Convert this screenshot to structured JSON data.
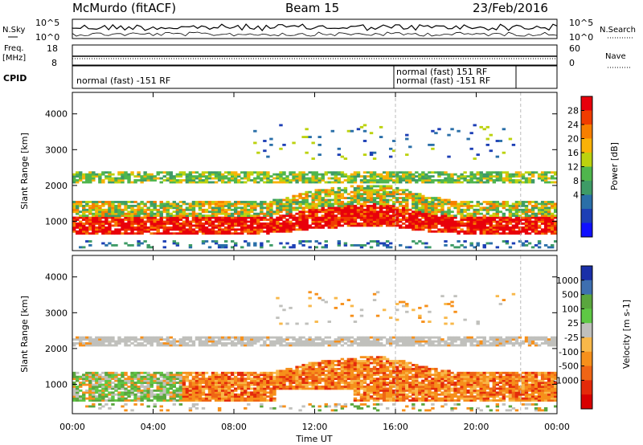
{
  "header": {
    "station": "McMurdo (fitACF)",
    "beam": "Beam 15",
    "date": "23/Feb/2016"
  },
  "noise_panel": {
    "left_label": "N.Sky",
    "right_label": "N.Search",
    "left_ticks": [
      "10^5",
      "10^0"
    ],
    "right_ticks": [
      "10^5",
      "10^0"
    ]
  },
  "freq_panel": {
    "left_label_1": "Freq.",
    "left_label_2": "[MHz]",
    "right_label": "Nave",
    "left_ticks": [
      "18",
      "8"
    ],
    "right_ticks": [
      "60",
      "0"
    ]
  },
  "cpid_panel": {
    "label": "CPID",
    "segments": [
      {
        "text": "normal (fast) -151 RF",
        "start_hour": 0
      },
      {
        "text": "normal (fast) 151 RF",
        "start_hour": 16
      },
      {
        "text": "normal (fast) -151 RF",
        "start_hour": 16
      }
    ]
  },
  "time_axis": {
    "label": "Time UT",
    "ticks": [
      "00:00",
      "04:00",
      "08:00",
      "12:00",
      "16:00",
      "20:00",
      "00:00"
    ],
    "range_hours": [
      0,
      24
    ]
  },
  "chart_data": [
    {
      "type": "heatmap",
      "panel": "power",
      "ylabel": "Slant Range [km]",
      "yticks": [
        1000,
        2000,
        3000,
        4000
      ],
      "ylim": [
        180,
        4600
      ],
      "xlim_hours": [
        0,
        24
      ],
      "colorbar": {
        "label": "Power [dB]",
        "ticks": [
          "28",
          "24",
          "20",
          "16",
          "12",
          "8",
          "4"
        ],
        "colors": [
          "#e8000b",
          "#f03c00",
          "#f77f00",
          "#f9b208",
          "#bcd20e",
          "#4fb64d",
          "#3e9b66",
          "#2a6fa8",
          "#1d3fb5",
          "#1010ff"
        ]
      },
      "bands": [
        {
          "name": "lower",
          "center_km": 900,
          "thickness_km": 420,
          "dominant": "red"
        },
        {
          "name": "middle",
          "center_km": 1350,
          "thickness_km": 300,
          "dominant": "orange-green"
        },
        {
          "name": "upper",
          "center_km": 2200,
          "thickness_km": 260,
          "dominant": "green"
        }
      ]
    },
    {
      "type": "heatmap",
      "panel": "velocity",
      "ylabel": "Slant Range [km]",
      "yticks": [
        1000,
        2000,
        3000,
        4000
      ],
      "ylim": [
        180,
        4600
      ],
      "xlim_hours": [
        0,
        24
      ],
      "colorbar": {
        "label": "Velocity [m s-1]",
        "ticks": [
          "1000",
          "500",
          "100",
          "25",
          "-25",
          "-100",
          "-500",
          "-1000"
        ],
        "colors": [
          "#1a2fa8",
          "#3e6fb0",
          "#5aa63e",
          "#5ec844",
          "#c0c0bc",
          "#f8b84a",
          "#f6901b",
          "#ef6515",
          "#e42a0a",
          "#d80000"
        ]
      },
      "bands": [
        {
          "name": "lower",
          "center_km": 1000,
          "thickness_km": 700,
          "dominant": "orange"
        },
        {
          "name": "upper",
          "center_km": 2150,
          "thickness_km": 260,
          "dominant": "grey"
        }
      ]
    }
  ]
}
